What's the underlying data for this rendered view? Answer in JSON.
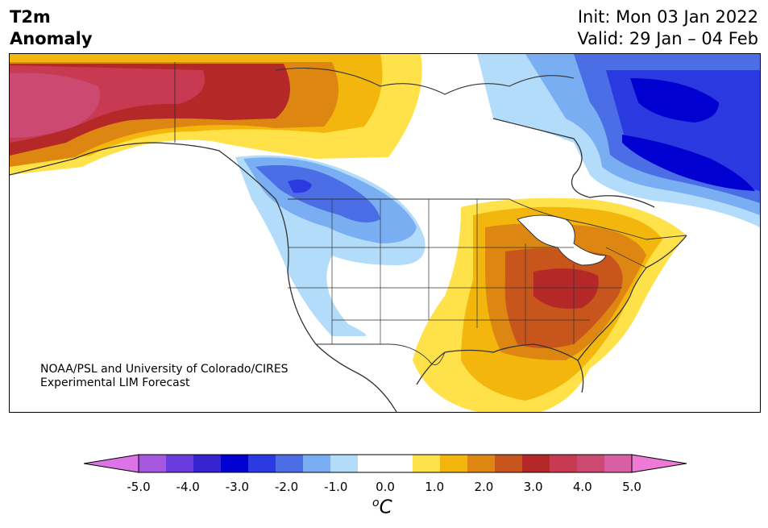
{
  "title": {
    "variable": "T2m",
    "metric": "Anomaly",
    "init": "Init: Mon 03 Jan 2022",
    "valid": "Valid: 29 Jan – 04 Feb"
  },
  "credit": {
    "line1": "NOAA/PSL and University of Colorado/CIRES",
    "line2": "Experimental LIM Forecast"
  },
  "colorbar": {
    "tick_labels": [
      "-5.0",
      "-4.0",
      "-3.0",
      "-2.0",
      "-1.0",
      "0.0",
      "1.0",
      "2.0",
      "3.0",
      "4.0",
      "5.0"
    ],
    "unit_base": "o",
    "unit_letter": "C",
    "colors": [
      "#dc73e6",
      "#a557e0",
      "#6a3ce0",
      "#3722d0",
      "#0000d0",
      "#2a3ae0",
      "#4b6ee6",
      "#7aaef2",
      "#b2dcfa",
      "#ffffff",
      "#ffffff",
      "#ffe14a",
      "#f2b60c",
      "#de8612",
      "#c8561c",
      "#b42828",
      "#c83a52",
      "#cc4a72",
      "#d85fa4",
      "#ee7ad6"
    ]
  },
  "map": {
    "region": "North America",
    "anomaly_regions": [
      {
        "area": "Alaska",
        "anomaly_c": 4.0
      },
      {
        "area": "Yukon / NW Canada",
        "anomaly_c": 2.5
      },
      {
        "area": "British Columbia / Alberta",
        "anomaly_c": -2.0
      },
      {
        "area": "Pacific Northwest / Northern Rockies",
        "anomaly_c": -1.0
      },
      {
        "area": "Hudson Bay / Quebec / Labrador",
        "anomaly_c": -3.0
      },
      {
        "area": "Eastern Arctic Canada",
        "anomaly_c": -1.5
      },
      {
        "area": "Ohio Valley / Mid-Atlantic",
        "anomaly_c": 3.0
      },
      {
        "area": "Southeast US",
        "anomaly_c": 2.5
      },
      {
        "area": "Gulf Coast / Texas",
        "anomaly_c": 1.5
      },
      {
        "area": "Great Plains",
        "anomaly_c": 0.0
      }
    ]
  }
}
